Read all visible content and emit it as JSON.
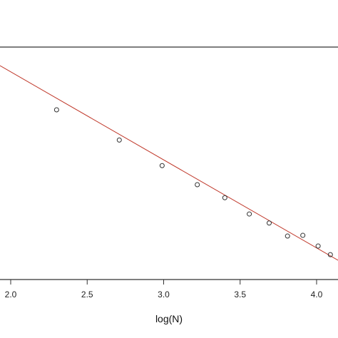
{
  "chart_data": {
    "type": "scatter",
    "xlabel": "log(N)",
    "ylabel": "",
    "x_ticks": [
      "2.0",
      "2.5",
      "3.0",
      "3.5",
      "4.0"
    ],
    "x_tick_values": [
      2.0,
      2.5,
      3.0,
      3.5,
      4.0
    ],
    "xlim": [
      1.93,
      4.14
    ],
    "ylim": [
      0.0,
      1.0
    ],
    "points": [
      {
        "x": 2.3,
        "y": 0.73
      },
      {
        "x": 2.71,
        "y": 0.6
      },
      {
        "x": 2.99,
        "y": 0.49
      },
      {
        "x": 3.22,
        "y": 0.408
      },
      {
        "x": 3.4,
        "y": 0.352
      },
      {
        "x": 3.56,
        "y": 0.282
      },
      {
        "x": 3.69,
        "y": 0.243
      },
      {
        "x": 3.81,
        "y": 0.187
      },
      {
        "x": 3.91,
        "y": 0.19
      },
      {
        "x": 4.01,
        "y": 0.144
      },
      {
        "x": 4.09,
        "y": 0.107
      }
    ],
    "fit_line": {
      "x1": 1.93,
      "y1": 0.92,
      "x2": 4.14,
      "y2": 0.083
    },
    "colors": {
      "points": "#333333",
      "fit_line": "#c0392b",
      "axes": "#333333"
    },
    "grid": false,
    "legend": "none"
  }
}
